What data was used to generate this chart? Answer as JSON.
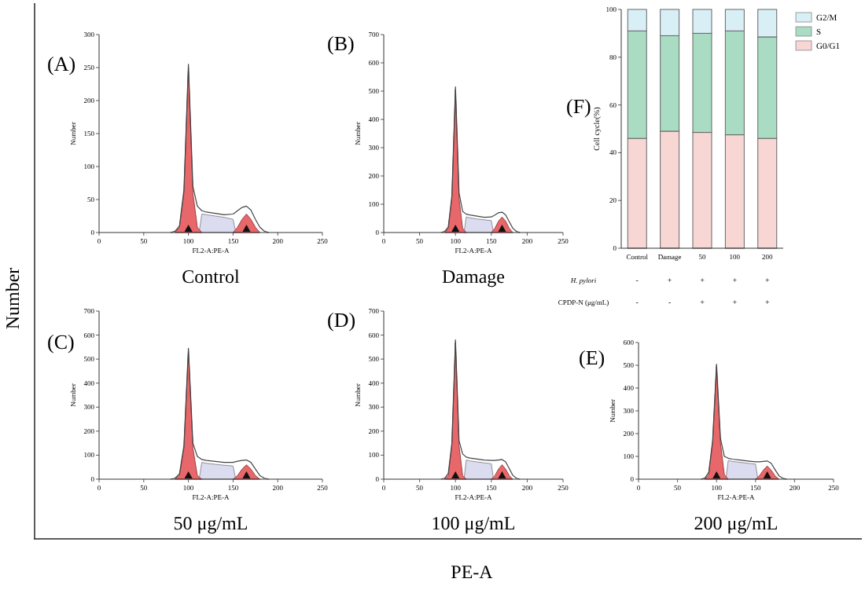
{
  "chart_data": [
    {
      "type": "area",
      "title": "(A)",
      "subtitle": "Control",
      "xlabel": "FL2-A:PE-A",
      "ylabel": "Number",
      "xlim": [
        0,
        250
      ],
      "xticks": [
        0,
        50,
        100,
        150,
        200,
        250
      ],
      "ylim": [
        0,
        300
      ],
      "yticks": [
        0,
        50,
        100,
        150,
        200,
        250,
        300
      ],
      "annotations": [
        "Number",
        "PE-A"
      ],
      "series": [
        {
          "type": "area",
          "color": "#dcdcf0",
          "x": [
            112,
            115,
            120,
            130,
            140,
            150,
            153
          ],
          "values": [
            0,
            28,
            27,
            25,
            23,
            20,
            0
          ]
        },
        {
          "type": "area",
          "color": "#e8676a",
          "x": [
            85,
            90,
            95,
            100,
            105,
            110,
            115
          ],
          "values": [
            0,
            8,
            60,
            250,
            60,
            8,
            0
          ]
        },
        {
          "type": "area",
          "color": "#e8676a",
          "x": [
            150,
            155,
            160,
            165,
            170,
            175,
            180
          ],
          "values": [
            0,
            8,
            20,
            28,
            20,
            8,
            0
          ]
        },
        {
          "type": "line",
          "color": "#444444",
          "x": [
            80,
            85,
            90,
            95,
            100,
            105,
            110,
            115,
            120,
            130,
            140,
            150,
            155,
            160,
            165,
            170,
            175,
            180,
            185,
            190
          ],
          "values": [
            0,
            2,
            10,
            65,
            255,
            70,
            40,
            33,
            31,
            29,
            27,
            28,
            33,
            38,
            40,
            34,
            20,
            8,
            2,
            0
          ]
        }
      ]
    },
    {
      "type": "area",
      "title": "(B)",
      "subtitle": "Damage",
      "xlabel": "FL2-A:PE-A",
      "ylabel": "Number",
      "xlim": [
        0,
        250
      ],
      "xticks": [
        0,
        50,
        100,
        150,
        200,
        250
      ],
      "ylim": [
        0,
        700
      ],
      "yticks": [
        0,
        100,
        200,
        300,
        400,
        500,
        600,
        700
      ],
      "series": [
        {
          "type": "area",
          "color": "#dcdcf0",
          "x": [
            112,
            115,
            120,
            130,
            140,
            150,
            153
          ],
          "values": [
            0,
            55,
            52,
            48,
            45,
            42,
            0
          ]
        },
        {
          "type": "area",
          "color": "#e8676a",
          "x": [
            85,
            90,
            95,
            100,
            105,
            110,
            115
          ],
          "values": [
            0,
            15,
            120,
            505,
            120,
            15,
            0
          ]
        },
        {
          "type": "area",
          "color": "#e8676a",
          "x": [
            150,
            155,
            160,
            165,
            170,
            175,
            180
          ],
          "values": [
            0,
            15,
            40,
            55,
            40,
            15,
            0
          ]
        },
        {
          "type": "line",
          "color": "#444444",
          "x": [
            80,
            85,
            90,
            95,
            100,
            105,
            110,
            115,
            120,
            130,
            140,
            150,
            155,
            160,
            165,
            170,
            175,
            180,
            185,
            190
          ],
          "values": [
            0,
            4,
            20,
            130,
            515,
            140,
            75,
            65,
            62,
            58,
            54,
            55,
            62,
            70,
            72,
            62,
            38,
            15,
            4,
            0
          ]
        }
      ]
    },
    {
      "type": "area",
      "title": "(C)",
      "subtitle": "50 μg/mL",
      "xlabel": "FL2-A:PE-A",
      "ylabel": "Number",
      "xlim": [
        0,
        250
      ],
      "xticks": [
        0,
        50,
        100,
        150,
        200,
        250
      ],
      "ylim": [
        0,
        700
      ],
      "yticks": [
        0,
        100,
        200,
        300,
        400,
        500,
        600,
        700
      ],
      "series": [
        {
          "type": "area",
          "color": "#dcdcf0",
          "x": [
            112,
            115,
            120,
            130,
            140,
            150,
            153
          ],
          "values": [
            0,
            70,
            66,
            62,
            58,
            55,
            0
          ]
        },
        {
          "type": "area",
          "color": "#e8676a",
          "x": [
            85,
            90,
            95,
            100,
            105,
            110,
            115
          ],
          "values": [
            0,
            15,
            130,
            535,
            130,
            15,
            0
          ]
        },
        {
          "type": "area",
          "color": "#e8676a",
          "x": [
            150,
            155,
            160,
            165,
            170,
            175,
            180
          ],
          "values": [
            0,
            15,
            42,
            60,
            42,
            15,
            0
          ]
        },
        {
          "type": "line",
          "color": "#444444",
          "x": [
            80,
            85,
            90,
            95,
            100,
            105,
            110,
            115,
            120,
            130,
            140,
            150,
            155,
            160,
            165,
            170,
            175,
            180,
            185,
            190
          ],
          "values": [
            0,
            4,
            22,
            140,
            545,
            150,
            95,
            82,
            78,
            74,
            70,
            70,
            75,
            78,
            80,
            70,
            42,
            15,
            4,
            0
          ]
        }
      ]
    },
    {
      "type": "area",
      "title": "(D)",
      "subtitle": "100 μg/mL",
      "xlabel": "FL2-A:PE-A",
      "ylabel": "Number",
      "xlim": [
        0,
        250
      ],
      "xticks": [
        0,
        50,
        100,
        150,
        200,
        250
      ],
      "ylim": [
        0,
        700
      ],
      "yticks": [
        0,
        100,
        200,
        300,
        400,
        500,
        600,
        700
      ],
      "series": [
        {
          "type": "area",
          "color": "#dcdcf0",
          "x": [
            112,
            115,
            120,
            130,
            140,
            150,
            153
          ],
          "values": [
            0,
            80,
            76,
            72,
            68,
            64,
            0
          ]
        },
        {
          "type": "area",
          "color": "#e8676a",
          "x": [
            85,
            90,
            95,
            100,
            105,
            110,
            115
          ],
          "values": [
            0,
            15,
            140,
            570,
            140,
            15,
            0
          ]
        },
        {
          "type": "area",
          "color": "#e8676a",
          "x": [
            150,
            155,
            160,
            165,
            170,
            175,
            180
          ],
          "values": [
            0,
            15,
            42,
            60,
            42,
            15,
            0
          ]
        },
        {
          "type": "line",
          "color": "#444444",
          "x": [
            80,
            85,
            90,
            95,
            100,
            105,
            110,
            115,
            120,
            130,
            140,
            150,
            155,
            160,
            165,
            170,
            175,
            180,
            185,
            190
          ],
          "values": [
            0,
            4,
            24,
            150,
            580,
            160,
            105,
            92,
            88,
            84,
            80,
            78,
            78,
            80,
            82,
            72,
            44,
            16,
            4,
            0
          ]
        }
      ]
    },
    {
      "type": "area",
      "title": "(E)",
      "subtitle": "200 μg/mL",
      "xlabel": "FL2-A:PE-A",
      "ylabel": "Number",
      "xlim": [
        0,
        250
      ],
      "xticks": [
        0,
        50,
        100,
        150,
        200,
        250
      ],
      "ylim": [
        0,
        600
      ],
      "yticks": [
        0,
        100,
        200,
        300,
        400,
        500,
        600
      ],
      "series": [
        {
          "type": "area",
          "color": "#dcdcf0",
          "x": [
            112,
            115,
            120,
            130,
            140,
            150,
            153
          ],
          "values": [
            0,
            82,
            78,
            74,
            70,
            66,
            0
          ]
        },
        {
          "type": "area",
          "color": "#e8676a",
          "x": [
            85,
            90,
            95,
            100,
            105,
            110,
            115
          ],
          "values": [
            0,
            20,
            160,
            495,
            160,
            20,
            0
          ]
        },
        {
          "type": "area",
          "color": "#e8676a",
          "x": [
            150,
            155,
            160,
            165,
            170,
            175,
            180
          ],
          "values": [
            0,
            15,
            40,
            58,
            40,
            15,
            0
          ]
        },
        {
          "type": "line",
          "color": "#444444",
          "x": [
            80,
            85,
            90,
            95,
            100,
            105,
            110,
            115,
            120,
            130,
            140,
            150,
            155,
            160,
            165,
            170,
            175,
            180,
            185,
            190
          ],
          "values": [
            0,
            5,
            30,
            170,
            505,
            180,
            100,
            92,
            88,
            84,
            80,
            76,
            76,
            78,
            80,
            70,
            42,
            15,
            4,
            0
          ]
        }
      ]
    },
    {
      "type": "bar",
      "title": "(F)",
      "stacked": true,
      "legend": "top right",
      "ylabel": "Cell cycle(%)",
      "ylim": [
        0,
        100
      ],
      "yticks": [
        0,
        20,
        40,
        60,
        80,
        100
      ],
      "categories": [
        "Control",
        "Damage",
        "50",
        "100",
        "200"
      ],
      "annotations": [
        "H. pylori",
        "-",
        "+",
        "+",
        "+",
        "+",
        "CPDP-N (μg/mL)",
        "-",
        "-",
        "+",
        "+",
        "+"
      ],
      "series": [
        {
          "name": "G0/G1",
          "color": "#f7d6d4",
          "values": [
            46,
            49,
            48.5,
            47.5,
            46
          ]
        },
        {
          "name": "S",
          "color": "#a9dcc2",
          "values": [
            45,
            40,
            41.5,
            43.5,
            42.5
          ]
        },
        {
          "name": "G2/M",
          "color": "#d8eff6",
          "values": [
            9,
            11,
            10,
            9,
            11.5
          ]
        }
      ]
    }
  ]
}
